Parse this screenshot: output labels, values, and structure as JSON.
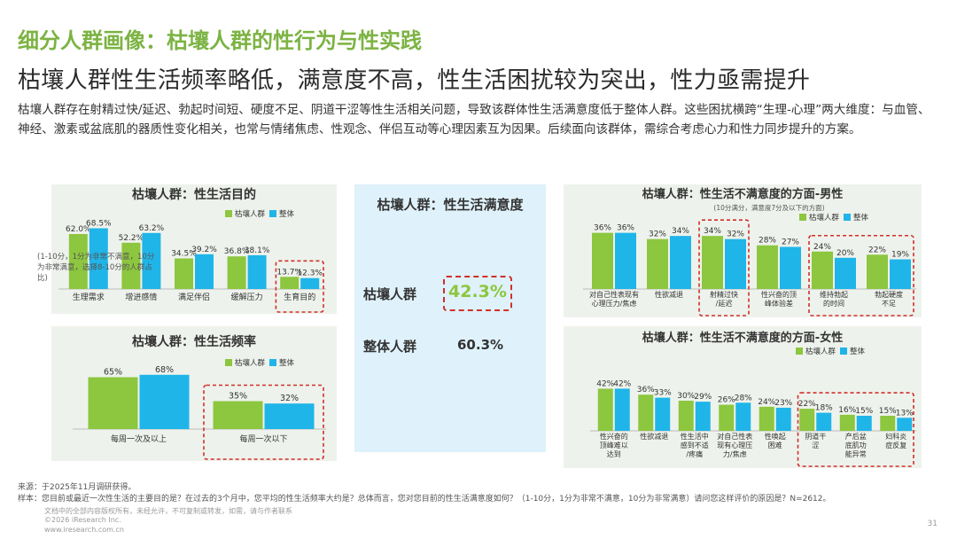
{
  "section_title": "细分人群画像：枯壤人群的性行为与性实践",
  "headline": "枯壤人群性生活频率略低，满意度不高，性生活困扰较为突出，性力亟需提升",
  "summary": "枯壤人群存在射精过快/延迟、勃起时间短、硬度不足、阴道干涩等性生活相关问题，导致该群体性生活满意度低于整体人群。这些困扰横跨“生理-心理”两大维度：与血管、神经、激素或盆底肌的器质性变化相关，也常与情绪焦虑、性观念、伴侣互动等心理因素互为因果。后续面向该群体，需综合考虑心力和性力同步提升的方案。",
  "colors": {
    "green": "#8dc63f",
    "blue": "#1fb5e9",
    "highlight": "#d0302a",
    "title_green": "#7cb342"
  },
  "satisfaction": {
    "title": "枯壤人群：性生活满意度",
    "note": "(1-10分，1分为非常不满意，10分为非常满意，选择8-10分的人群占比)",
    "rows": [
      {
        "label": "枯壤人群",
        "value": "42.3%"
      },
      {
        "label": "整体人群",
        "value": "60.3%"
      }
    ]
  },
  "footnotes": {
    "source": "来源：于2025年11月调研获得。",
    "sample": "样本：您目前或最近一次性生活的主要目的是？在过去的3个月中，您平均的性生活频率大约是？总体而言，您对您目前的性生活满意度如何？（1-10分，1分为非常不满意，10分为非常满意）请问您这样评价的原因是？N=2612。",
    "tiny1": "文档中的全部内容版权所有，未经允许，不可复制或转发，如需，请与作者联系",
    "tiny2": "©2026 iResearch Inc.",
    "tiny3": "www.iresearch.com.cn",
    "page": "31"
  },
  "chart_data": [
    {
      "id": "purpose",
      "type": "bar",
      "title": "枯壤人群：性生活目的",
      "legend": [
        "枯壤人群",
        "整体"
      ],
      "categories": [
        "生理需求",
        "增进感情",
        "满足伴侣",
        "缓解压力",
        "生育目的"
      ],
      "series": [
        {
          "name": "枯壤人群",
          "values": [
            62.0,
            52.2,
            34.5,
            36.8,
            13.7
          ],
          "labels": [
            "62.0%",
            "52.2%",
            "34.5%",
            "36.8%",
            "13.7%"
          ]
        },
        {
          "name": "整体",
          "values": [
            68.5,
            63.2,
            39.2,
            38.1,
            12.3
          ],
          "labels": [
            "68.5%",
            "63.2%",
            "39.2%",
            "38.1%",
            "12.3%"
          ]
        }
      ],
      "ylim": [
        0,
        80
      ],
      "highlight": [
        4
      ]
    },
    {
      "id": "frequency",
      "type": "bar",
      "title": "枯壤人群：性生活频率",
      "legend": [
        "枯壤人群",
        "整体"
      ],
      "categories": [
        "每周一次及以上",
        "每周一次以下"
      ],
      "series": [
        {
          "name": "枯壤人群",
          "values": [
            65,
            35
          ],
          "labels": [
            "65%",
            "35%"
          ]
        },
        {
          "name": "整体",
          "values": [
            68,
            32
          ],
          "labels": [
            "68%",
            "32%"
          ]
        }
      ],
      "ylim": [
        0,
        80
      ],
      "highlight": [
        1
      ]
    },
    {
      "id": "male",
      "type": "bar",
      "title": "枯壤人群：性生活不满意度的方面-男性",
      "subtitle": "(10分满分，满意度7分及以下的方面)",
      "legend": [
        "枯壤人群",
        "整体"
      ],
      "categories": [
        [
          "对自己性表现有",
          "心理压力/焦虑"
        ],
        [
          "性欲减退"
        ],
        [
          "射精过快",
          "/延迟"
        ],
        [
          "性兴奋的顶",
          "峰体验差"
        ],
        [
          "维持勃起",
          "的时间"
        ],
        [
          "勃起硬度",
          "不足"
        ]
      ],
      "series": [
        {
          "name": "枯壤人群",
          "values": [
            36,
            32,
            34,
            28,
            24,
            22
          ],
          "labels": [
            "36%",
            "32%",
            "34%",
            "28%",
            "24%",
            "22%"
          ]
        },
        {
          "name": "整体",
          "values": [
            36,
            34,
            32,
            27,
            20,
            19
          ],
          "labels": [
            "36%",
            "34%",
            "32%",
            "27%",
            "20%",
            "19%"
          ]
        }
      ],
      "ylim": [
        0,
        50
      ],
      "highlight": [
        2,
        4,
        5
      ]
    },
    {
      "id": "female",
      "type": "bar",
      "title": "枯壤人群：性生活不满意度的方面-女性",
      "legend": [
        "枯壤人群",
        "整体"
      ],
      "categories": [
        [
          "性兴奋的",
          "顶峰难以",
          "达到"
        ],
        [
          "性欲减退"
        ],
        [
          "性生活中",
          "感到不适",
          "/疼痛"
        ],
        [
          "对自己性表",
          "现有心理压",
          "力/焦虑"
        ],
        [
          "性唤起",
          "困难"
        ],
        [
          "阴道干",
          "涩"
        ],
        [
          "产后盆",
          "底肌功",
          "能异常"
        ],
        [
          "妇科炎",
          "症反复"
        ]
      ],
      "series": [
        {
          "name": "枯壤人群",
          "values": [
            42,
            36,
            30,
            26,
            24,
            22,
            16,
            15
          ],
          "labels": [
            "42%",
            "36%",
            "30%",
            "26%",
            "24%",
            "22%",
            "16%",
            "15%"
          ]
        },
        {
          "name": "整体",
          "values": [
            42,
            33,
            29,
            28,
            23,
            18,
            15,
            13
          ],
          "labels": [
            "42%",
            "33%",
            "29%",
            "28%",
            "23%",
            "18%",
            "15%",
            "13%"
          ]
        }
      ],
      "ylim": [
        0,
        60
      ],
      "highlight": [
        5,
        6,
        7
      ]
    }
  ]
}
